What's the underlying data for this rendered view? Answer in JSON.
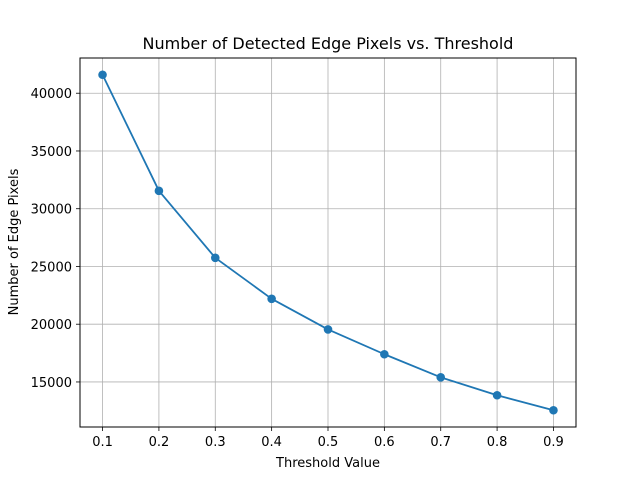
{
  "chart_data": {
    "type": "line",
    "title": "Number of Detected Edge Pixels vs. Threshold",
    "xlabel": "Threshold Value",
    "ylabel": "Number of Edge Pixels",
    "x": [
      0.1,
      0.2,
      0.3,
      0.4,
      0.5,
      0.6,
      0.7,
      0.8,
      0.9
    ],
    "series": [
      {
        "values": [
          41600,
          31550,
          25750,
          22200,
          19550,
          17400,
          15400,
          13850,
          12550
        ],
        "color": "#1f77b4",
        "marker": "circle"
      }
    ],
    "xticks": [
      "0.1",
      "0.2",
      "0.3",
      "0.4",
      "0.5",
      "0.6",
      "0.7",
      "0.8",
      "0.9"
    ],
    "yticks": [
      "15000",
      "20000",
      "25000",
      "30000",
      "35000",
      "40000"
    ],
    "xlim": [
      0.06,
      0.94
    ],
    "ylim": [
      11100,
      43050
    ],
    "grid": true,
    "legend": false
  }
}
